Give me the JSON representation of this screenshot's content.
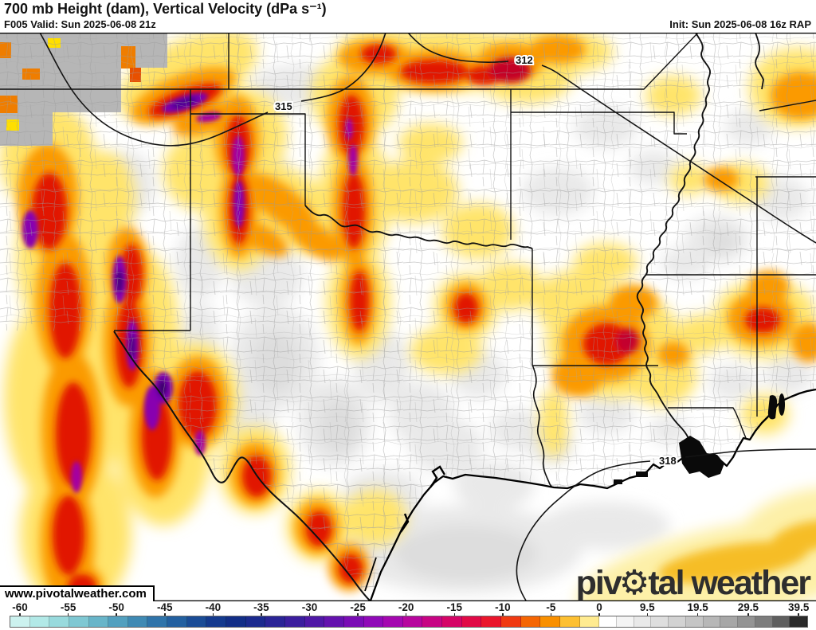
{
  "header": {
    "title": "700 mb Height (dam), Vertical Velocity (dPa s⁻¹)",
    "valid": "F005 Valid: Sun 2025-06-08 21z",
    "init": "Init: Sun 2025-06-08 16z RAP"
  },
  "map": {
    "contour_labels": [
      {
        "text": "315"
      },
      {
        "text": "312"
      },
      {
        "text": "318"
      }
    ],
    "watermark": "www.pivotalweather.com",
    "logo": {
      "pre": "piv",
      "gear": "⚙",
      "post": "tal weather"
    }
  },
  "colorbar": {
    "ticks": [
      -60,
      -55,
      -50,
      -45,
      -40,
      -35,
      -30,
      -25,
      -20,
      -15,
      -10,
      -5,
      0,
      9.5,
      19.5,
      29.5,
      39.5
    ],
    "negative_colors": [
      "#ccf2ef",
      "#b2e9e7",
      "#98dadd",
      "#7fc8d3",
      "#68b5c9",
      "#52a0bf",
      "#3f8ab4",
      "#2f74aa",
      "#2360a0",
      "#1a4c96",
      "#143a8e",
      "#122e87",
      "#1b2a8e",
      "#2a2496",
      "#3b1e9e",
      "#4f18a6",
      "#6412ae",
      "#7a0db5",
      "#900ab8",
      "#a408b0",
      "#b7069e",
      "#c70584",
      "#d50567",
      "#e10a47",
      "#ea162c",
      "#f03a12",
      "#f56603",
      "#f99000",
      "#fdc032",
      "#ffeb90"
    ],
    "positive_colors": [
      "#ffffff",
      "#f4f4f4",
      "#e9e9e9",
      "#dedede",
      "#d2d2d2",
      "#c5c5c5",
      "#b7b7b7",
      "#a7a7a7",
      "#949494",
      "#7d7d7d",
      "#5f5f5f",
      "#2a2a2a"
    ]
  },
  "colors": {
    "upward_core_purple": "#7a00b0",
    "upward_strong_red": "#e11406",
    "upward_moderate_orange": "#fb9a05",
    "upward_weak_yellow": "#ffe46a",
    "downward_gray": "#c5c5c5",
    "missing_data_gray": "#b6b6b6"
  }
}
